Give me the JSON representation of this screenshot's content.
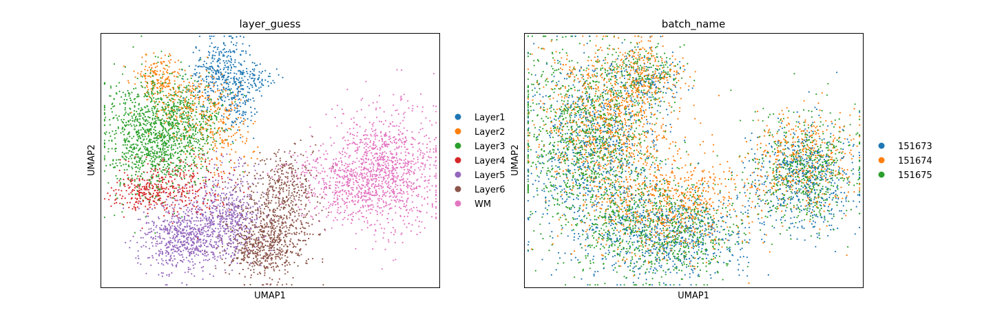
{
  "chart_data": [
    {
      "type": "scatter",
      "title": "layer_guess",
      "xlabel": "UMAP1",
      "ylabel": "UMAP2",
      "xlim": [
        0,
        100
      ],
      "ylim": [
        0,
        100
      ],
      "grid": false,
      "legend_position": "right",
      "series": [
        {
          "name": "Layer1",
          "color": "#1f77b4",
          "blobs": [
            {
              "cx": 36,
              "cy": 84,
              "sx": 5,
              "sy": 7,
              "n": 380
            },
            {
              "cx": 46,
              "cy": 82,
              "sx": 3,
              "sy": 2.5,
              "n": 60
            },
            {
              "cx": 41,
              "cy": 72,
              "sx": 2.5,
              "sy": 6,
              "n": 90
            }
          ]
        },
        {
          "name": "Layer2",
          "color": "#ff7f0e",
          "blobs": [
            {
              "cx": 17,
              "cy": 83,
              "sx": 3.5,
              "sy": 4.5,
              "n": 160
            },
            {
              "cx": 28,
              "cy": 72,
              "sx": 6,
              "sy": 7,
              "n": 220
            },
            {
              "cx": 36,
              "cy": 60,
              "sx": 5,
              "sy": 8,
              "n": 160
            }
          ]
        },
        {
          "name": "Layer3",
          "color": "#2ca02c",
          "blobs": [
            {
              "cx": 14,
              "cy": 60,
              "sx": 7,
              "sy": 12,
              "n": 900
            },
            {
              "cx": 24,
              "cy": 63,
              "sx": 6,
              "sy": 9,
              "n": 500
            }
          ]
        },
        {
          "name": "Layer4",
          "color": "#d62728",
          "blobs": [
            {
              "cx": 14,
              "cy": 38,
              "sx": 5,
              "sy": 5,
              "n": 260
            },
            {
              "cx": 26,
              "cy": 40,
              "sx": 6,
              "sy": 6,
              "n": 200
            }
          ]
        },
        {
          "name": "Layer5",
          "color": "#9467bd",
          "blobs": [
            {
              "cx": 25,
              "cy": 20,
              "sx": 7,
              "sy": 7,
              "n": 700
            },
            {
              "cx": 38,
              "cy": 28,
              "sx": 5,
              "sy": 9,
              "n": 450
            }
          ]
        },
        {
          "name": "Layer6",
          "color": "#8c564b",
          "blobs": [
            {
              "cx": 51,
              "cy": 25,
              "sx": 6,
              "sy": 11,
              "n": 700
            },
            {
              "cx": 46,
              "cy": 14,
              "sx": 5,
              "sy": 4,
              "n": 250
            },
            {
              "cx": 56,
              "cy": 44,
              "sx": 4,
              "sy": 6,
              "n": 140
            }
          ]
        },
        {
          "name": "WM",
          "color": "#e377c2",
          "blobs": [
            {
              "cx": 84,
              "cy": 46,
              "sx": 8,
              "sy": 12,
              "n": 1100
            },
            {
              "cx": 71,
              "cy": 40,
              "sx": 6,
              "sy": 6,
              "n": 250
            },
            {
              "cx": 60,
              "cy": 46,
              "sx": 6,
              "sy": 4,
              "n": 70
            }
          ]
        }
      ]
    },
    {
      "type": "scatter",
      "title": "batch_name",
      "xlabel": "UMAP1",
      "ylabel": "UMAP2",
      "xlim": [
        0,
        100
      ],
      "ylim": [
        0,
        100
      ],
      "grid": false,
      "legend_position": "right",
      "series": [
        {
          "name": "151673",
          "color": "#1f77b4",
          "blobs": [
            {
              "cx": 20,
              "cy": 55,
              "sx": 10,
              "sy": 18,
              "n": 700
            },
            {
              "cx": 42,
              "cy": 20,
              "sx": 12,
              "sy": 9,
              "n": 650
            },
            {
              "cx": 82,
              "cy": 43,
              "sx": 8,
              "sy": 10,
              "n": 550
            },
            {
              "cx": 36,
              "cy": 82,
              "sx": 6,
              "sy": 6,
              "n": 120
            }
          ]
        },
        {
          "name": "151674",
          "color": "#ff7f0e",
          "blobs": [
            {
              "cx": 24,
              "cy": 66,
              "sx": 10,
              "sy": 15,
              "n": 900
            },
            {
              "cx": 42,
              "cy": 32,
              "sx": 12,
              "sy": 10,
              "n": 700
            },
            {
              "cx": 82,
              "cy": 50,
              "sx": 8,
              "sy": 10,
              "n": 450
            },
            {
              "cx": 36,
              "cy": 84,
              "sx": 5,
              "sy": 6,
              "n": 200
            }
          ]
        },
        {
          "name": "151675",
          "color": "#2ca02c",
          "blobs": [
            {
              "cx": 18,
              "cy": 58,
              "sx": 10,
              "sy": 18,
              "n": 1100
            },
            {
              "cx": 40,
              "cy": 22,
              "sx": 12,
              "sy": 10,
              "n": 800
            },
            {
              "cx": 83,
              "cy": 46,
              "sx": 8,
              "sy": 11,
              "n": 550
            },
            {
              "cx": 34,
              "cy": 84,
              "sx": 6,
              "sy": 6,
              "n": 200
            }
          ]
        }
      ]
    }
  ]
}
